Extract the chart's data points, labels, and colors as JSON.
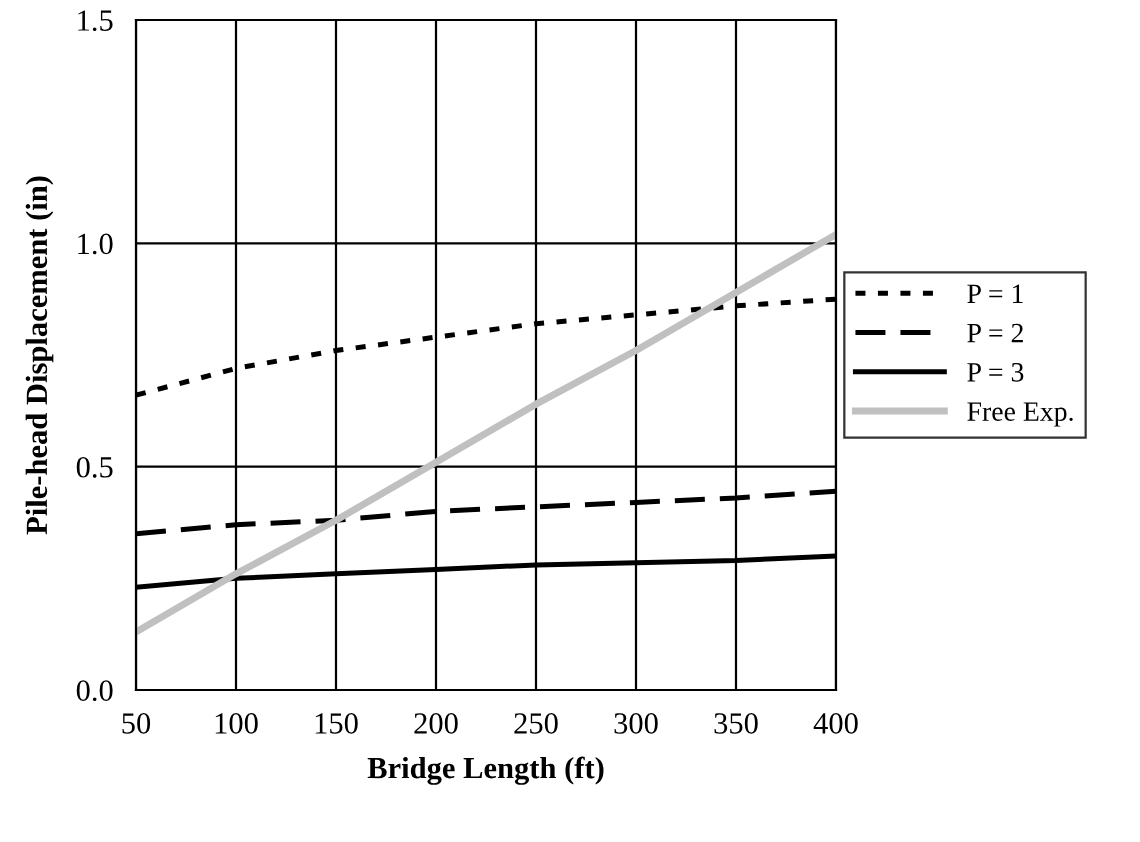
{
  "chart_data": {
    "type": "line",
    "xlabel": "Bridge Length (ft)",
    "ylabel": "Pile-head Displacement (in)",
    "x": [
      50,
      100,
      150,
      200,
      250,
      300,
      350,
      400
    ],
    "series": [
      {
        "name": "P = 1",
        "color": "#000000",
        "line_style": "dotted",
        "values": [
          0.66,
          0.72,
          0.76,
          0.79,
          0.82,
          0.84,
          0.86,
          0.875
        ]
      },
      {
        "name": "P = 2",
        "color": "#000000",
        "line_style": "dashed",
        "values": [
          0.35,
          0.37,
          0.38,
          0.4,
          0.41,
          0.42,
          0.43,
          0.445
        ]
      },
      {
        "name": "P = 3",
        "color": "#000000",
        "line_style": "solid",
        "values": [
          0.23,
          0.25,
          0.26,
          0.27,
          0.28,
          0.285,
          0.29,
          0.3
        ]
      },
      {
        "name": "Free Exp.",
        "color": "#c0c0c0",
        "line_style": "solid",
        "values": [
          0.13,
          0.26,
          0.38,
          0.51,
          0.64,
          0.76,
          0.89,
          1.02
        ]
      }
    ],
    "xlim": [
      50,
      400
    ],
    "xticks": [
      50,
      100,
      150,
      200,
      250,
      300,
      350,
      400
    ],
    "ylim": [
      0,
      1.5
    ],
    "yticks": [
      {
        "value": 0,
        "label": "0.0"
      },
      {
        "value": 0.5,
        "label": "0.5"
      },
      {
        "value": 1.0,
        "label": "1.0"
      },
      {
        "value": 1.5,
        "label": "1.5"
      }
    ],
    "grid": true,
    "legend": "right",
    "marker": "none"
  }
}
